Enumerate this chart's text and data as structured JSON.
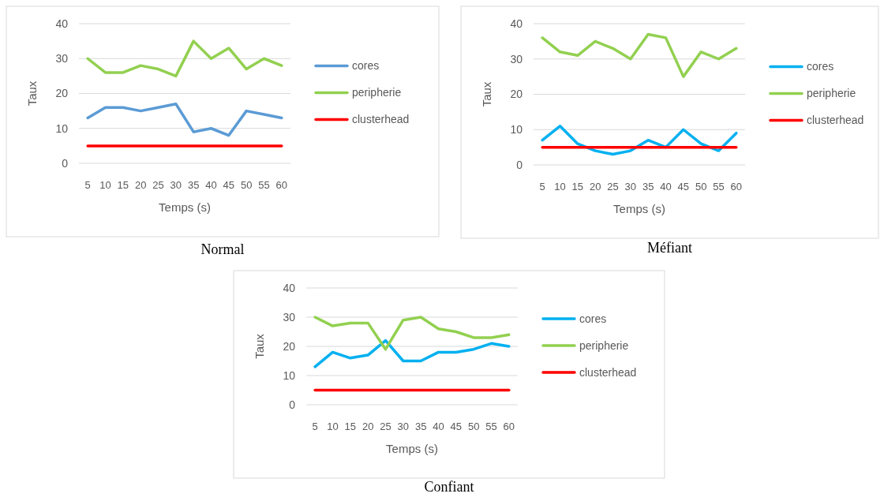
{
  "chart_data": [
    {
      "type": "line",
      "title": "Normal",
      "xlabel": "Temps (s)",
      "ylabel": "Taux",
      "categories": [
        "5",
        "10",
        "15",
        "20",
        "25",
        "30",
        "35",
        "40",
        "45",
        "50",
        "55",
        "60"
      ],
      "ylim": [
        0,
        40
      ],
      "yticks": [
        0,
        10,
        20,
        30,
        40
      ],
      "grid": "y",
      "legend": "right",
      "series": [
        {
          "name": "cores",
          "color": "#5b9bd5",
          "values": [
            13,
            16,
            16,
            15,
            16,
            17,
            9,
            10,
            8,
            15,
            14,
            13
          ]
        },
        {
          "name": "peripherie",
          "color": "#92d050",
          "values": [
            30,
            26,
            26,
            28,
            27,
            25,
            35,
            30,
            33,
            27,
            30,
            28
          ]
        },
        {
          "name": "clusterhead",
          "color": "#ff0000",
          "values": [
            5,
            5,
            5,
            5,
            5,
            5,
            5,
            5,
            5,
            5,
            5,
            5
          ]
        }
      ]
    },
    {
      "type": "line",
      "title": "Méfiant",
      "xlabel": "Temps (s)",
      "ylabel": "Taux",
      "categories": [
        "5",
        "10",
        "15",
        "20",
        "25",
        "30",
        "35",
        "40",
        "45",
        "50",
        "55",
        "60"
      ],
      "ylim": [
        0,
        40
      ],
      "yticks": [
        0,
        10,
        20,
        30,
        40
      ],
      "grid": "y",
      "legend": "right",
      "series": [
        {
          "name": "cores",
          "color": "#00b0f0",
          "values": [
            7,
            11,
            6,
            4,
            3,
            4,
            7,
            5,
            10,
            6,
            4,
            9
          ]
        },
        {
          "name": "peripherie",
          "color": "#92d050",
          "values": [
            36,
            32,
            31,
            35,
            33,
            30,
            37,
            36,
            25,
            32,
            30,
            33
          ]
        },
        {
          "name": "clusterhead",
          "color": "#ff0000",
          "values": [
            5,
            5,
            5,
            5,
            5,
            5,
            5,
            5,
            5,
            5,
            5,
            5
          ]
        }
      ]
    },
    {
      "type": "line",
      "title": "Confiant",
      "xlabel": "Temps (s)",
      "ylabel": "Taux",
      "categories": [
        "5",
        "10",
        "15",
        "20",
        "25",
        "30",
        "35",
        "40",
        "45",
        "50",
        "55",
        "60"
      ],
      "ylim": [
        0,
        40
      ],
      "yticks": [
        0,
        10,
        20,
        30,
        40
      ],
      "grid": "y",
      "legend": "right",
      "series": [
        {
          "name": "cores",
          "color": "#00b0f0",
          "values": [
            13,
            18,
            16,
            17,
            22,
            15,
            15,
            18,
            18,
            19,
            21,
            20
          ]
        },
        {
          "name": "peripherie",
          "color": "#92d050",
          "values": [
            30,
            27,
            28,
            28,
            19,
            29,
            30,
            26,
            25,
            23,
            23,
            24
          ]
        },
        {
          "name": "clusterhead",
          "color": "#ff0000",
          "values": [
            5,
            5,
            5,
            5,
            5,
            5,
            5,
            5,
            5,
            5,
            5,
            5
          ]
        }
      ]
    }
  ]
}
